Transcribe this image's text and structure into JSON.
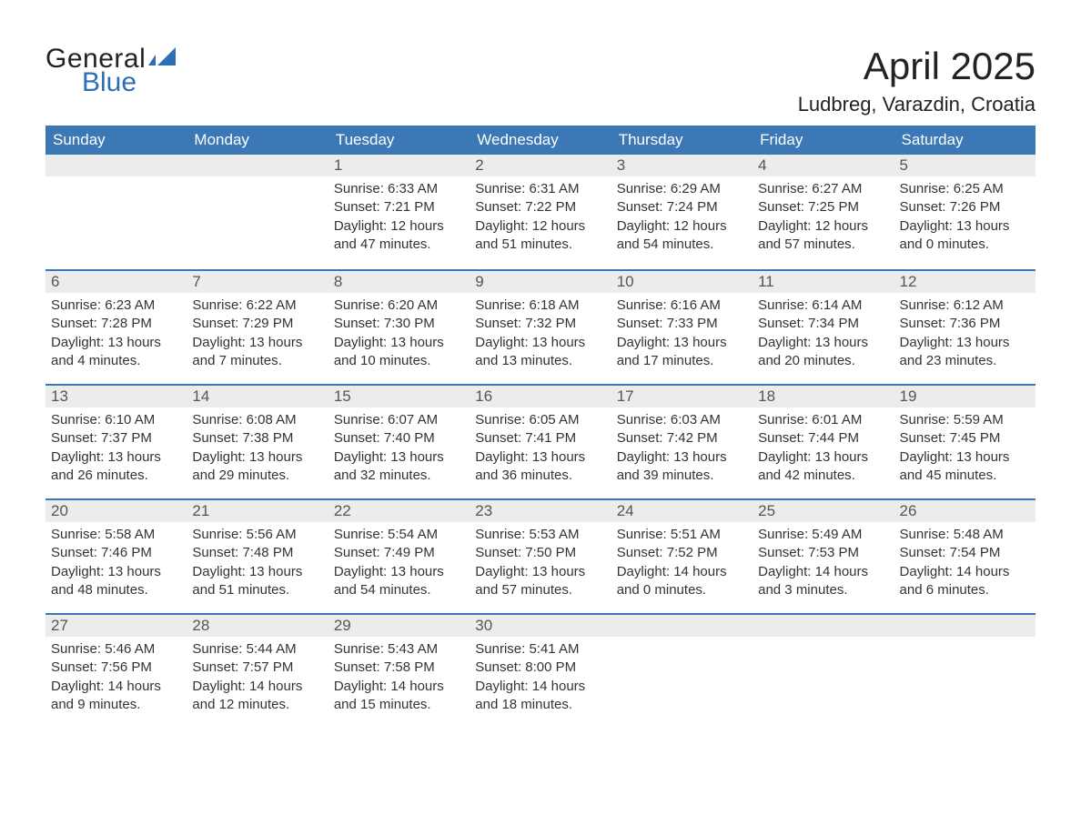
{
  "logo": {
    "line1": "General",
    "line2": "Blue",
    "mark_color": "#2e6eb5"
  },
  "title": "April 2025",
  "location": "Ludbreg, Varazdin, Croatia",
  "colors": {
    "header_bg": "#3b78b5",
    "header_fg": "#ffffff",
    "daynum_bg": "#ececec",
    "daynum_fg": "#555555",
    "text": "#333333",
    "rule": "#3b78b5",
    "page_bg": "#ffffff"
  },
  "fonts": {
    "title_size_pt": 32,
    "location_size_pt": 17,
    "weekday_size_pt": 13,
    "body_size_pt": 11
  },
  "weekdays": [
    "Sunday",
    "Monday",
    "Tuesday",
    "Wednesday",
    "Thursday",
    "Friday",
    "Saturday"
  ],
  "weeks": [
    [
      null,
      null,
      {
        "n": "1",
        "sunrise": "6:33 AM",
        "sunset": "7:21 PM",
        "daylight": "12 hours and 47 minutes."
      },
      {
        "n": "2",
        "sunrise": "6:31 AM",
        "sunset": "7:22 PM",
        "daylight": "12 hours and 51 minutes."
      },
      {
        "n": "3",
        "sunrise": "6:29 AM",
        "sunset": "7:24 PM",
        "daylight": "12 hours and 54 minutes."
      },
      {
        "n": "4",
        "sunrise": "6:27 AM",
        "sunset": "7:25 PM",
        "daylight": "12 hours and 57 minutes."
      },
      {
        "n": "5",
        "sunrise": "6:25 AM",
        "sunset": "7:26 PM",
        "daylight": "13 hours and 0 minutes."
      }
    ],
    [
      {
        "n": "6",
        "sunrise": "6:23 AM",
        "sunset": "7:28 PM",
        "daylight": "13 hours and 4 minutes."
      },
      {
        "n": "7",
        "sunrise": "6:22 AM",
        "sunset": "7:29 PM",
        "daylight": "13 hours and 7 minutes."
      },
      {
        "n": "8",
        "sunrise": "6:20 AM",
        "sunset": "7:30 PM",
        "daylight": "13 hours and 10 minutes."
      },
      {
        "n": "9",
        "sunrise": "6:18 AM",
        "sunset": "7:32 PM",
        "daylight": "13 hours and 13 minutes."
      },
      {
        "n": "10",
        "sunrise": "6:16 AM",
        "sunset": "7:33 PM",
        "daylight": "13 hours and 17 minutes."
      },
      {
        "n": "11",
        "sunrise": "6:14 AM",
        "sunset": "7:34 PM",
        "daylight": "13 hours and 20 minutes."
      },
      {
        "n": "12",
        "sunrise": "6:12 AM",
        "sunset": "7:36 PM",
        "daylight": "13 hours and 23 minutes."
      }
    ],
    [
      {
        "n": "13",
        "sunrise": "6:10 AM",
        "sunset": "7:37 PM",
        "daylight": "13 hours and 26 minutes."
      },
      {
        "n": "14",
        "sunrise": "6:08 AM",
        "sunset": "7:38 PM",
        "daylight": "13 hours and 29 minutes."
      },
      {
        "n": "15",
        "sunrise": "6:07 AM",
        "sunset": "7:40 PM",
        "daylight": "13 hours and 32 minutes."
      },
      {
        "n": "16",
        "sunrise": "6:05 AM",
        "sunset": "7:41 PM",
        "daylight": "13 hours and 36 minutes."
      },
      {
        "n": "17",
        "sunrise": "6:03 AM",
        "sunset": "7:42 PM",
        "daylight": "13 hours and 39 minutes."
      },
      {
        "n": "18",
        "sunrise": "6:01 AM",
        "sunset": "7:44 PM",
        "daylight": "13 hours and 42 minutes."
      },
      {
        "n": "19",
        "sunrise": "5:59 AM",
        "sunset": "7:45 PM",
        "daylight": "13 hours and 45 minutes."
      }
    ],
    [
      {
        "n": "20",
        "sunrise": "5:58 AM",
        "sunset": "7:46 PM",
        "daylight": "13 hours and 48 minutes."
      },
      {
        "n": "21",
        "sunrise": "5:56 AM",
        "sunset": "7:48 PM",
        "daylight": "13 hours and 51 minutes."
      },
      {
        "n": "22",
        "sunrise": "5:54 AM",
        "sunset": "7:49 PM",
        "daylight": "13 hours and 54 minutes."
      },
      {
        "n": "23",
        "sunrise": "5:53 AM",
        "sunset": "7:50 PM",
        "daylight": "13 hours and 57 minutes."
      },
      {
        "n": "24",
        "sunrise": "5:51 AM",
        "sunset": "7:52 PM",
        "daylight": "14 hours and 0 minutes."
      },
      {
        "n": "25",
        "sunrise": "5:49 AM",
        "sunset": "7:53 PM",
        "daylight": "14 hours and 3 minutes."
      },
      {
        "n": "26",
        "sunrise": "5:48 AM",
        "sunset": "7:54 PM",
        "daylight": "14 hours and 6 minutes."
      }
    ],
    [
      {
        "n": "27",
        "sunrise": "5:46 AM",
        "sunset": "7:56 PM",
        "daylight": "14 hours and 9 minutes."
      },
      {
        "n": "28",
        "sunrise": "5:44 AM",
        "sunset": "7:57 PM",
        "daylight": "14 hours and 12 minutes."
      },
      {
        "n": "29",
        "sunrise": "5:43 AM",
        "sunset": "7:58 PM",
        "daylight": "14 hours and 15 minutes."
      },
      {
        "n": "30",
        "sunrise": "5:41 AM",
        "sunset": "8:00 PM",
        "daylight": "14 hours and 18 minutes."
      },
      null,
      null,
      null
    ]
  ],
  "labels": {
    "sunrise": "Sunrise: ",
    "sunset": "Sunset: ",
    "daylight": "Daylight: "
  }
}
